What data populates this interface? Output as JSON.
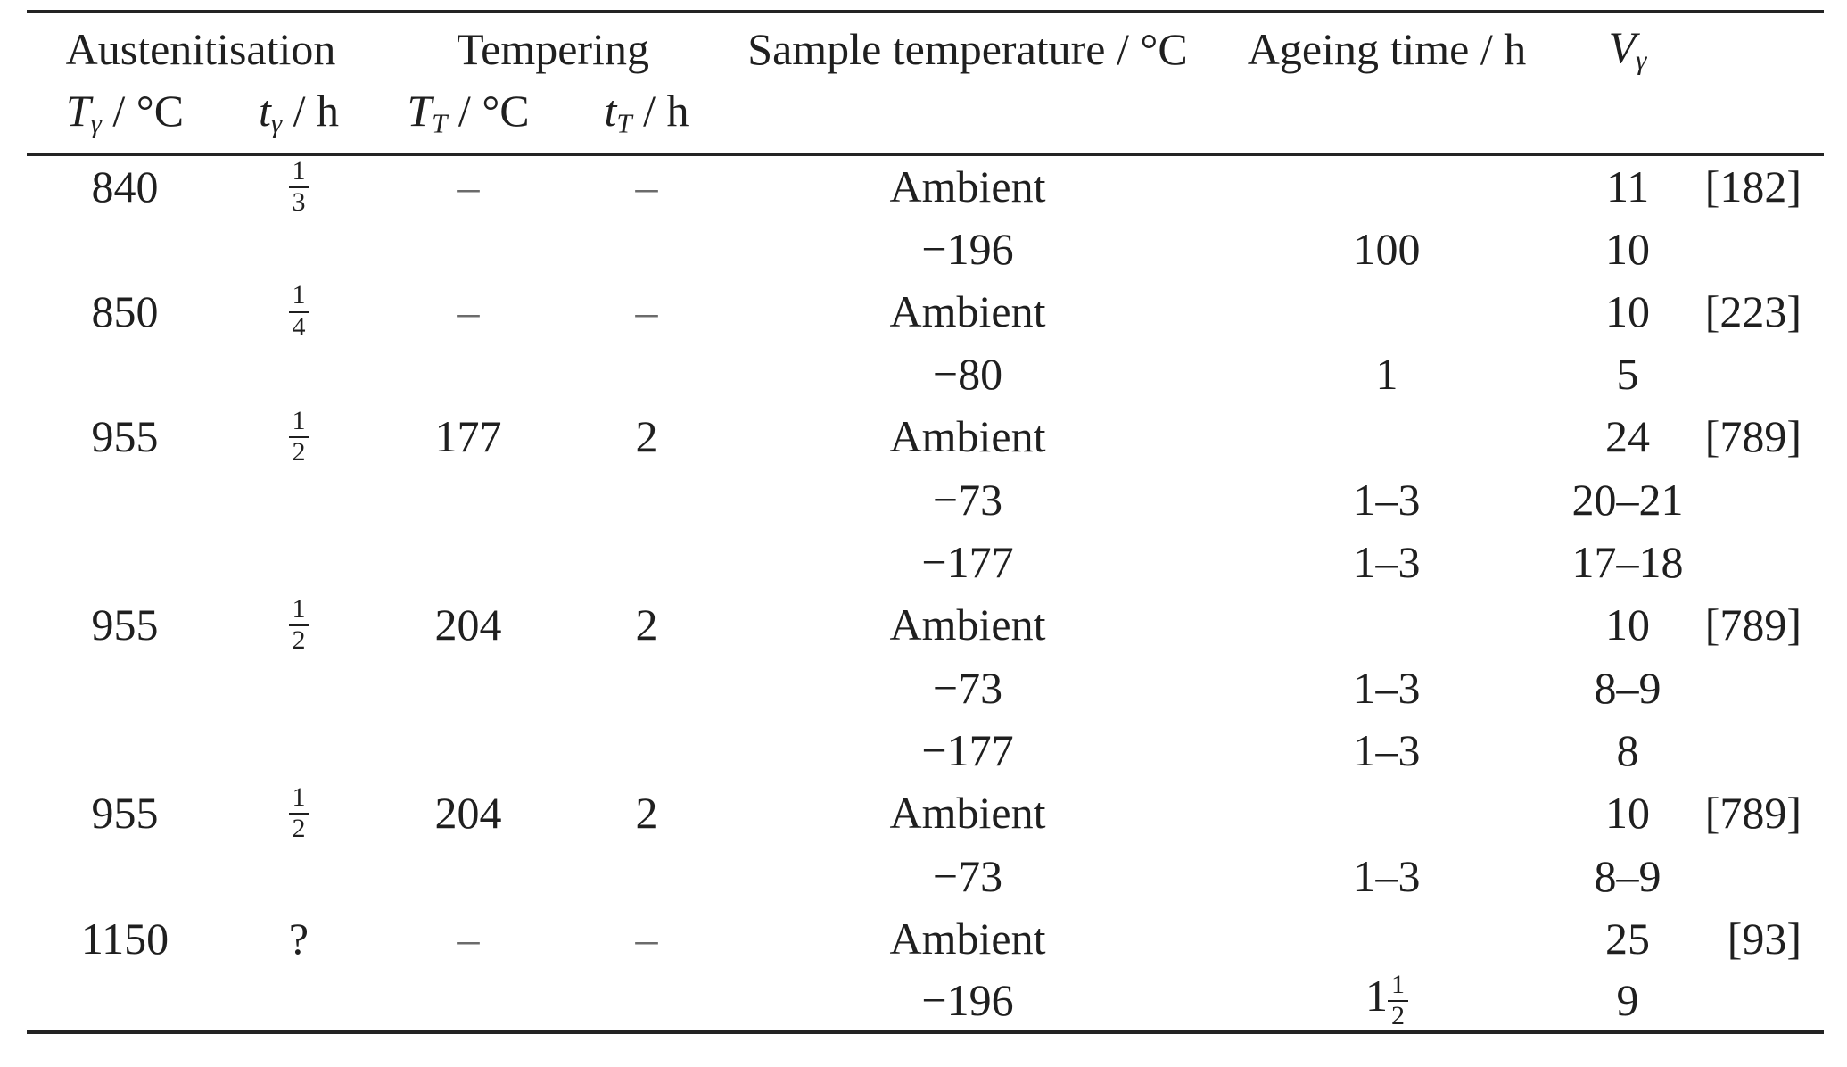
{
  "colors": {
    "background": "#ffffff",
    "text": "#1f1f1f",
    "rules": "#232323",
    "missing_value_dash": "#6b6b6b"
  },
  "table": {
    "group_headers": {
      "austenitisation": "Austenitisation",
      "tempering": "Tempering",
      "sample_temperature": "Sample temperature / °C",
      "ageing_time": "Ageing time / h",
      "v_gamma": {
        "base": "V",
        "sub": "γ"
      }
    },
    "sub_headers": {
      "aus_T": {
        "base": "T",
        "sub": "γ",
        "rest": " / °C"
      },
      "aus_t": {
        "base": "t",
        "sub": "γ",
        "rest": " / h"
      },
      "temper_T": {
        "base": "T",
        "sub": "T",
        "rest": " / °C"
      },
      "temper_t": {
        "base": "t",
        "sub": "T",
        "rest": " / h"
      }
    },
    "rows": [
      {
        "aus_T": "840",
        "aus_t": {
          "num": "1",
          "den": "3"
        },
        "temper_T": "–",
        "temper_t": "–",
        "sample": "Ambient",
        "ageing": "",
        "v": "11",
        "ref": "[182]"
      },
      {
        "aus_T": "",
        "aus_t": "",
        "temper_T": "",
        "temper_t": "",
        "sample": "−196",
        "ageing": "100",
        "v": "10",
        "ref": ""
      },
      {
        "aus_T": "850",
        "aus_t": {
          "num": "1",
          "den": "4"
        },
        "temper_T": "–",
        "temper_t": "–",
        "sample": "Ambient",
        "ageing": "",
        "v": "10",
        "ref": "[223]"
      },
      {
        "aus_T": "",
        "aus_t": "",
        "temper_T": "",
        "temper_t": "",
        "sample": "−80",
        "ageing": "1",
        "v": "5",
        "ref": ""
      },
      {
        "aus_T": "955",
        "aus_t": {
          "num": "1",
          "den": "2"
        },
        "temper_T": "177",
        "temper_t": "2",
        "sample": "Ambient",
        "ageing": "",
        "v": "24",
        "ref": "[789]"
      },
      {
        "aus_T": "",
        "aus_t": "",
        "temper_T": "",
        "temper_t": "",
        "sample": "−73",
        "ageing": "1–3",
        "v": "20–21",
        "ref": ""
      },
      {
        "aus_T": "",
        "aus_t": "",
        "temper_T": "",
        "temper_t": "",
        "sample": "−177",
        "ageing": "1–3",
        "v": "17–18",
        "ref": ""
      },
      {
        "aus_T": "955",
        "aus_t": {
          "num": "1",
          "den": "2"
        },
        "temper_T": "204",
        "temper_t": "2",
        "sample": "Ambient",
        "ageing": "",
        "v": "10",
        "ref": "[789]"
      },
      {
        "aus_T": "",
        "aus_t": "",
        "temper_T": "",
        "temper_t": "",
        "sample": "−73",
        "ageing": "1–3",
        "v": "8–9",
        "ref": ""
      },
      {
        "aus_T": "",
        "aus_t": "",
        "temper_T": "",
        "temper_t": "",
        "sample": "−177",
        "ageing": "1–3",
        "v": "8",
        "ref": ""
      },
      {
        "aus_T": "955",
        "aus_t": {
          "num": "1",
          "den": "2"
        },
        "temper_T": "204",
        "temper_t": "2",
        "sample": "Ambient",
        "ageing": "",
        "v": "10",
        "ref": "[789]"
      },
      {
        "aus_T": "",
        "aus_t": "",
        "temper_T": "",
        "temper_t": "",
        "sample": "−73",
        "ageing": "1–3",
        "v": "8–9",
        "ref": ""
      },
      {
        "aus_T": "1150",
        "aus_t": "?",
        "temper_T": "–",
        "temper_t": "–",
        "sample": "Ambient",
        "ageing": "",
        "v": "25",
        "ref": "[93]"
      },
      {
        "aus_T": "",
        "aus_t": "",
        "temper_T": "",
        "temper_t": "",
        "sample": "−196",
        "ageing": {
          "whole": "1",
          "num": "1",
          "den": "2"
        },
        "v": "9",
        "ref": ""
      }
    ]
  }
}
